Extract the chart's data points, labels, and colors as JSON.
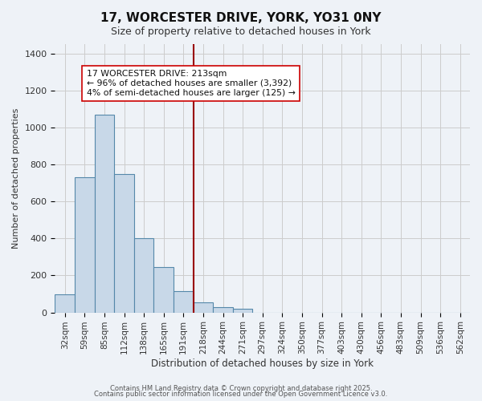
{
  "title": "17, WORCESTER DRIVE, YORK, YO31 0NY",
  "subtitle": "Size of property relative to detached houses in York",
  "xlabel": "Distribution of detached houses by size in York",
  "ylabel": "Number of detached properties",
  "bar_color": "#c8d8e8",
  "bar_edge_color": "#5588aa",
  "categories": [
    "32sqm",
    "59sqm",
    "85sqm",
    "112sqm",
    "138sqm",
    "165sqm",
    "191sqm",
    "218sqm",
    "244sqm",
    "271sqm",
    "297sqm",
    "324sqm",
    "350sqm",
    "377sqm",
    "403sqm",
    "430sqm",
    "456sqm",
    "483sqm",
    "509sqm",
    "536sqm",
    "562sqm"
  ],
  "values": [
    100,
    730,
    1070,
    750,
    400,
    245,
    115,
    55,
    28,
    22,
    0,
    0,
    0,
    0,
    0,
    0,
    0,
    0,
    0,
    0,
    0
  ],
  "vline_index": 7,
  "vline_color": "#990000",
  "annotation_title": "17 WORCESTER DRIVE: 213sqm",
  "annotation_line1": "← 96% of detached houses are smaller (3,392)",
  "annotation_line2": "4% of semi-detached houses are larger (125) →",
  "ylim": [
    0,
    1450
  ],
  "yticks": [
    0,
    200,
    400,
    600,
    800,
    1000,
    1200,
    1400
  ],
  "bg_color": "#eef2f7",
  "plot_bg_color": "#eef2f7",
  "footer1": "Contains HM Land Registry data © Crown copyright and database right 2025.",
  "footer2": "Contains public sector information licensed under the Open Government Licence v3.0."
}
